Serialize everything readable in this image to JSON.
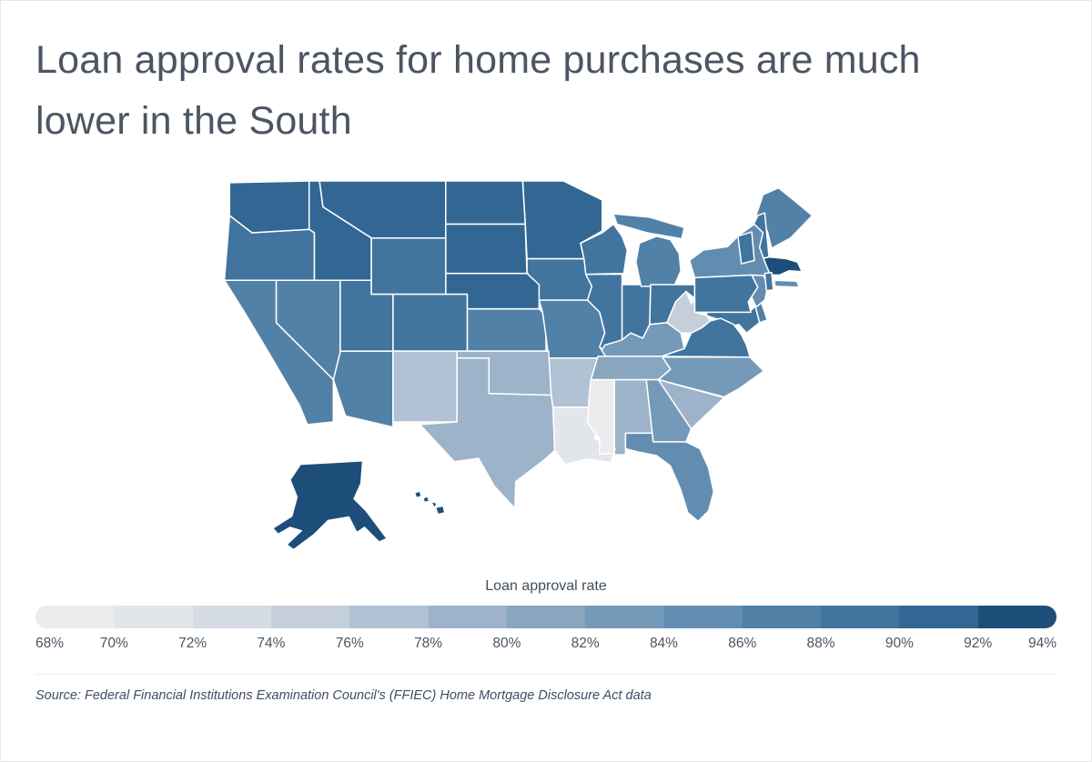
{
  "chart_data": {
    "type": "choropleth",
    "title": "Loan approval rates for home purchases are much lower in the South",
    "legend_title": "Loan approval rate",
    "unit": "%",
    "domain": [
      68,
      94
    ],
    "step": 2,
    "ticks": [
      "68%",
      "70%",
      "72%",
      "74%",
      "76%",
      "78%",
      "80%",
      "82%",
      "84%",
      "86%",
      "88%",
      "90%",
      "92%",
      "94%"
    ],
    "colors": [
      "#ececee",
      "#e2e6ea",
      "#d5dce3",
      "#c4cfda",
      "#b0c2d3",
      "#9cb3c9",
      "#88a6c0",
      "#7599b8",
      "#638db0",
      "#5281a8",
      "#41749e",
      "#326793",
      "#1d4e79"
    ],
    "source": "Source:  Federal Financial Institutions Examination Council's (FFIEC) Home Mortgage Disclosure Act data",
    "states": [
      {
        "code": "AK",
        "name": "Alaska",
        "value": 93
      },
      {
        "code": "AL",
        "name": "Alabama",
        "value": 79
      },
      {
        "code": "AR",
        "name": "Arkansas",
        "value": 77
      },
      {
        "code": "AZ",
        "name": "Arizona",
        "value": 86
      },
      {
        "code": "CA",
        "name": "California",
        "value": 86
      },
      {
        "code": "CO",
        "name": "Colorado",
        "value": 88
      },
      {
        "code": "CT",
        "name": "Connecticut",
        "value": 90
      },
      {
        "code": "DE",
        "name": "Delaware",
        "value": 86
      },
      {
        "code": "FL",
        "name": "Florida",
        "value": 84
      },
      {
        "code": "GA",
        "name": "Georgia",
        "value": 83
      },
      {
        "code": "HI",
        "name": "Hawaii",
        "value": 92
      },
      {
        "code": "IA",
        "name": "Iowa",
        "value": 88
      },
      {
        "code": "ID",
        "name": "Idaho",
        "value": 90
      },
      {
        "code": "IL",
        "name": "Illinois",
        "value": 88
      },
      {
        "code": "IN",
        "name": "Indiana",
        "value": 88
      },
      {
        "code": "KS",
        "name": "Kansas",
        "value": 86
      },
      {
        "code": "KY",
        "name": "Kentucky",
        "value": 83
      },
      {
        "code": "LA",
        "name": "Louisiana",
        "value": 71
      },
      {
        "code": "MA",
        "name": "Massachusetts",
        "value": 93
      },
      {
        "code": "MD",
        "name": "Maryland",
        "value": 89
      },
      {
        "code": "ME",
        "name": "Maine",
        "value": 87
      },
      {
        "code": "MI",
        "name": "Michigan",
        "value": 86
      },
      {
        "code": "MN",
        "name": "Minnesota",
        "value": 91
      },
      {
        "code": "MO",
        "name": "Missouri",
        "value": 86
      },
      {
        "code": "MS",
        "name": "Mississippi",
        "value": 69
      },
      {
        "code": "MT",
        "name": "Montana",
        "value": 90
      },
      {
        "code": "NC",
        "name": "North Carolina",
        "value": 83
      },
      {
        "code": "ND",
        "name": "North Dakota",
        "value": 91
      },
      {
        "code": "NE",
        "name": "Nebraska",
        "value": 90
      },
      {
        "code": "NH",
        "name": "New Hampshire",
        "value": 88
      },
      {
        "code": "NJ",
        "name": "New Jersey",
        "value": 84
      },
      {
        "code": "NM",
        "name": "New Mexico",
        "value": 77
      },
      {
        "code": "NV",
        "name": "Nevada",
        "value": 86
      },
      {
        "code": "NY",
        "name": "New York",
        "value": 84
      },
      {
        "code": "OH",
        "name": "Ohio",
        "value": 88
      },
      {
        "code": "OK",
        "name": "Oklahoma",
        "value": 79
      },
      {
        "code": "OR",
        "name": "Oregon",
        "value": 88
      },
      {
        "code": "PA",
        "name": "Pennsylvania",
        "value": 88
      },
      {
        "code": "RI",
        "name": "Rhode Island",
        "value": 88
      },
      {
        "code": "SC",
        "name": "South Carolina",
        "value": 79
      },
      {
        "code": "SD",
        "name": "South Dakota",
        "value": 90
      },
      {
        "code": "TN",
        "name": "Tennessee",
        "value": 80
      },
      {
        "code": "TX",
        "name": "Texas",
        "value": 79
      },
      {
        "code": "UT",
        "name": "Utah",
        "value": 88
      },
      {
        "code": "VA",
        "name": "Virginia",
        "value": 88
      },
      {
        "code": "VT",
        "name": "Vermont",
        "value": 88
      },
      {
        "code": "WA",
        "name": "Washington",
        "value": 90
      },
      {
        "code": "WI",
        "name": "Wisconsin",
        "value": 88
      },
      {
        "code": "WV",
        "name": "West Virginia",
        "value": 75
      },
      {
        "code": "WY",
        "name": "Wyoming",
        "value": 88
      }
    ]
  }
}
